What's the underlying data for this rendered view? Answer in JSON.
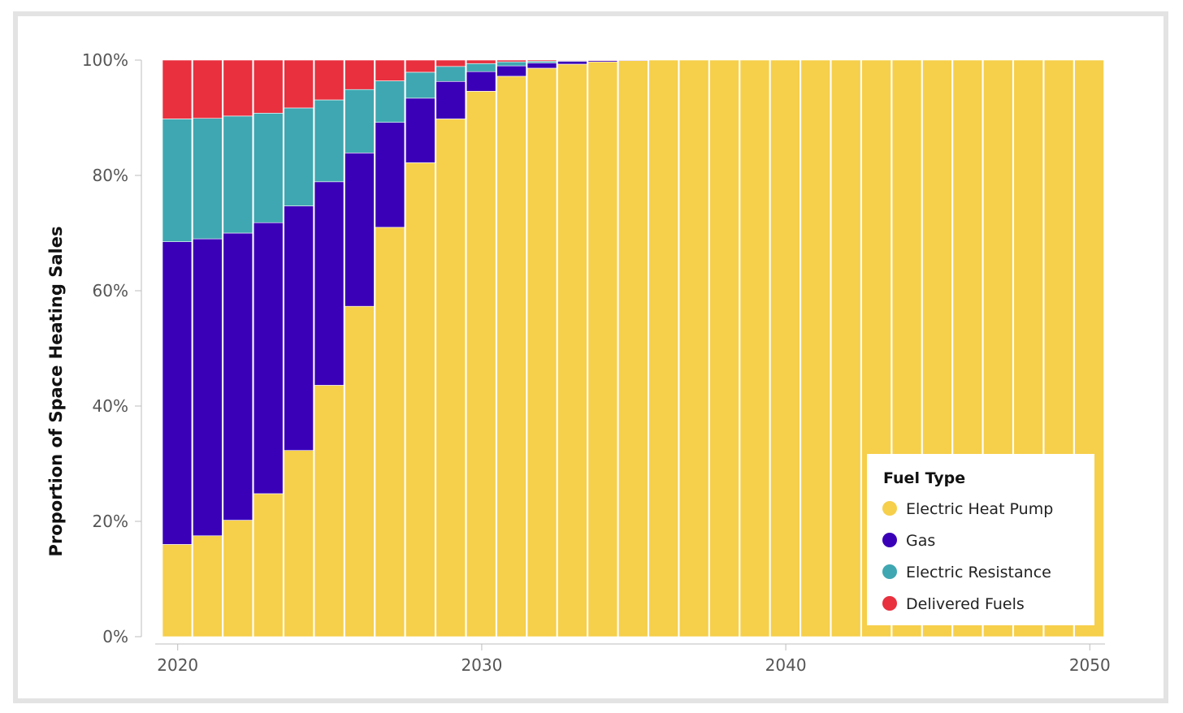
{
  "chart_data": {
    "type": "bar",
    "stacked": true,
    "ylabel": "Proportion of Space Heating Sales",
    "xlabel": "",
    "ylim": [
      0,
      100
    ],
    "y_ticks": [
      "0%",
      "20%",
      "40%",
      "60%",
      "80%",
      "100%"
    ],
    "x_ticks": [
      "2020",
      "2030",
      "2040",
      "2050"
    ],
    "x": [
      2020,
      2021,
      2022,
      2023,
      2024,
      2025,
      2026,
      2027,
      2028,
      2029,
      2030,
      2031,
      2032,
      2033,
      2034,
      2035,
      2036,
      2037,
      2038,
      2039,
      2040,
      2041,
      2042,
      2043,
      2044,
      2045,
      2046,
      2047,
      2048,
      2049,
      2050
    ],
    "series": [
      {
        "name": "Electric Heat Pump",
        "color": "#f6cf4b",
        "values": [
          16,
          17.5,
          20.2,
          24.8,
          32.3,
          43.6,
          57.3,
          71,
          82.2,
          89.8,
          94.6,
          97.2,
          98.6,
          99.3,
          99.7,
          99.9,
          100,
          100,
          100,
          100,
          100,
          100,
          100,
          100,
          100,
          100,
          100,
          100,
          100,
          100,
          100
        ]
      },
      {
        "name": "Gas",
        "color": "#3a00b8",
        "values": [
          52.5,
          51.5,
          49.8,
          47,
          42.4,
          35.3,
          26.6,
          18.2,
          11.2,
          6.5,
          3.4,
          1.8,
          0.9,
          0.5,
          0.2,
          0.1,
          0,
          0,
          0,
          0,
          0,
          0,
          0,
          0,
          0,
          0,
          0,
          0,
          0,
          0,
          0
        ]
      },
      {
        "name": "Electric Resistance",
        "color": "#3fa7b1",
        "values": [
          21.3,
          20.9,
          20.3,
          19,
          17,
          14.2,
          11,
          7.2,
          4.5,
          2.6,
          1.4,
          0.7,
          0.3,
          0.1,
          0,
          0,
          0,
          0,
          0,
          0,
          0,
          0,
          0,
          0,
          0,
          0,
          0,
          0,
          0,
          0,
          0
        ]
      },
      {
        "name": "Delivered Fuels",
        "color": "#e8303f",
        "values": [
          10.2,
          10.1,
          9.7,
          9.2,
          8.3,
          6.9,
          5.1,
          3.6,
          2.1,
          1.1,
          0.6,
          0.3,
          0.2,
          0.1,
          0.1,
          0,
          0,
          0,
          0,
          0,
          0,
          0,
          0,
          0,
          0,
          0,
          0,
          0,
          0,
          0,
          0
        ]
      }
    ],
    "legend": {
      "title": "Fuel Type",
      "placement": "bottom-right"
    },
    "grid": false
  }
}
